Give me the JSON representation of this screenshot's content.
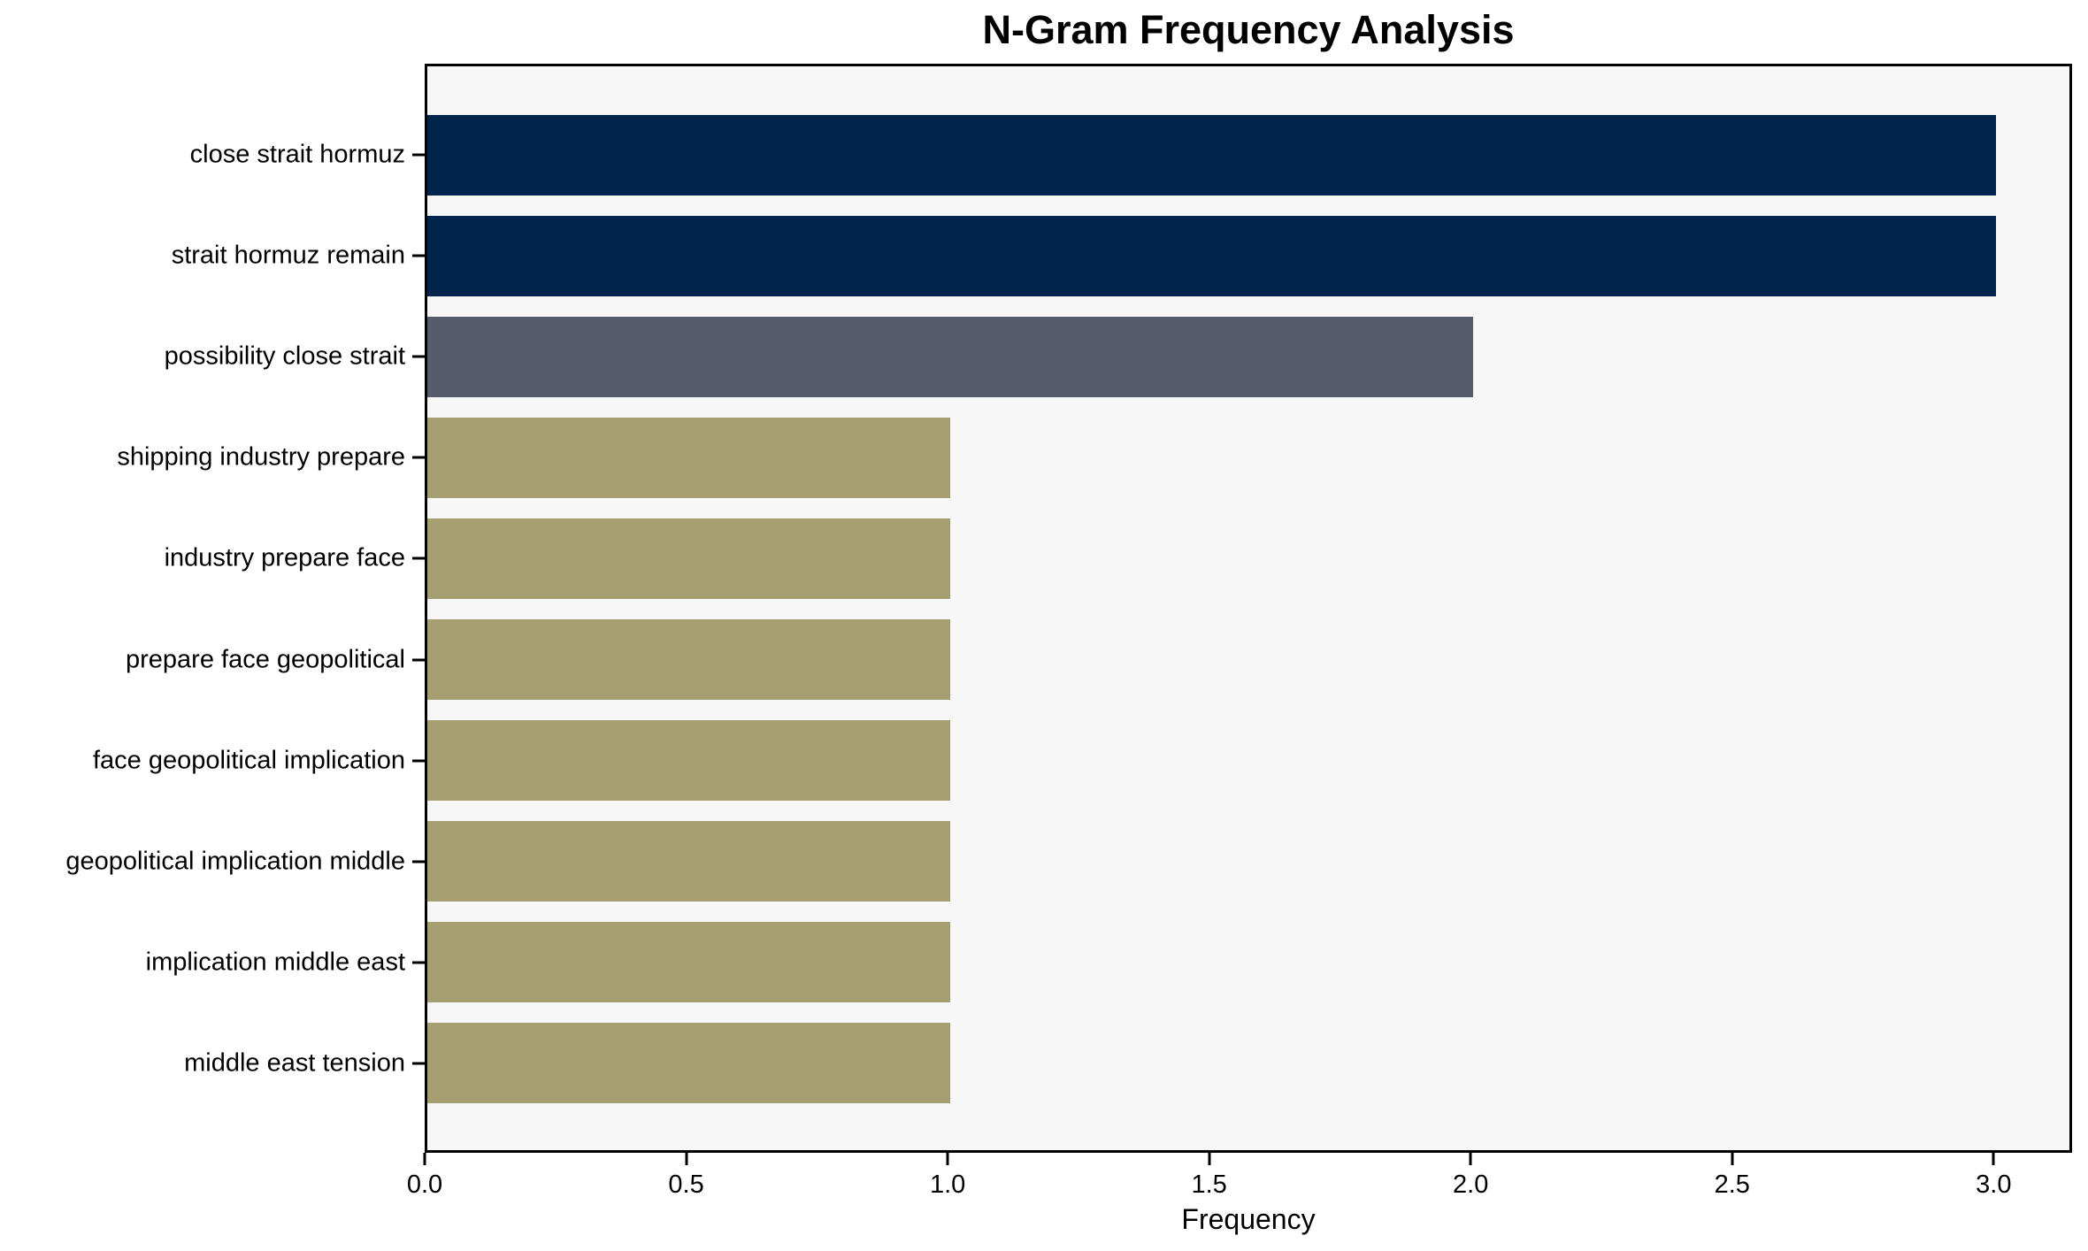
{
  "chart_data": {
    "type": "bar",
    "orientation": "horizontal",
    "title": "N-Gram Frequency Analysis",
    "xlabel": "Frequency",
    "ylabel": "",
    "categories": [
      "close strait hormuz",
      "strait hormuz remain",
      "possibility close strait",
      "shipping industry prepare",
      "industry prepare face",
      "prepare face geopolitical",
      "face geopolitical implication",
      "geopolitical implication middle",
      "implication middle east",
      "middle east tension"
    ],
    "values": [
      3,
      3,
      2,
      1,
      1,
      1,
      1,
      1,
      1,
      1
    ],
    "bar_colors": [
      "#02254e",
      "#02254e",
      "#565c6b",
      "#a69f72",
      "#a69f72",
      "#a69f72",
      "#a69f72",
      "#a69f72",
      "#a69f72",
      "#a69f72"
    ],
    "xlim": [
      0,
      3.15
    ],
    "xticks": [
      {
        "value": 0.0,
        "label": "0.0"
      },
      {
        "value": 0.5,
        "label": "0.5"
      },
      {
        "value": 1.0,
        "label": "1.0"
      },
      {
        "value": 1.5,
        "label": "1.5"
      },
      {
        "value": 2.0,
        "label": "2.0"
      },
      {
        "value": 2.5,
        "label": "2.5"
      },
      {
        "value": 3.0,
        "label": "3.0"
      }
    ],
    "grid": false,
    "legend": null,
    "colors": {
      "plot_background": "#f7f7f7",
      "figure_background": "#ffffff",
      "spine": "#000000",
      "text": "#000000",
      "count_3": "#02254e",
      "count_2": "#565c6b",
      "count_1": "#a69f72"
    }
  }
}
